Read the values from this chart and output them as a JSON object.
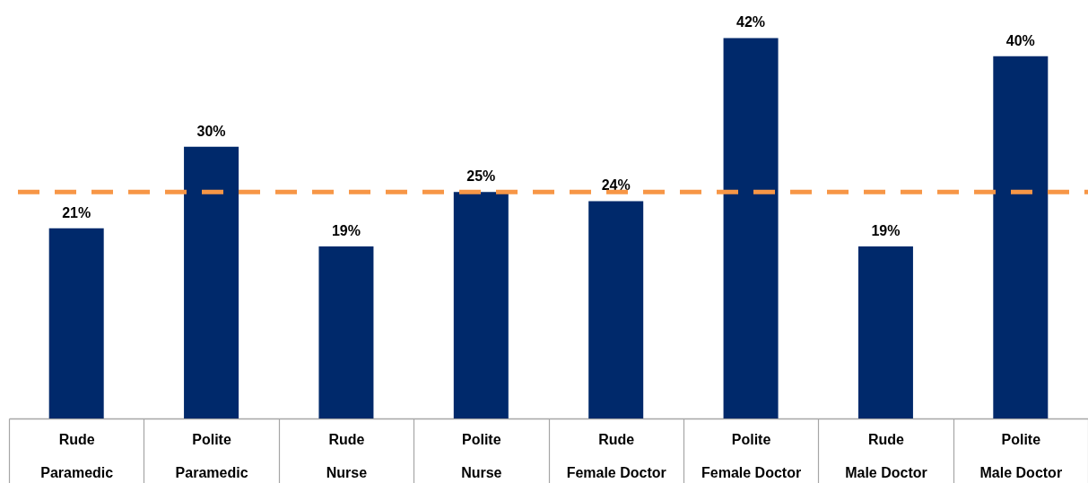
{
  "chart_data": {
    "type": "bar",
    "categories": [
      "Rude\nParamedic",
      "Polite\nParamedic",
      "Rude\nNurse",
      "Polite\nNurse",
      "Rude\nFemale Doctor",
      "Polite\nFemale Doctor",
      "Rude\nMale Doctor",
      "Polite\nMale Doctor"
    ],
    "values": [
      21,
      30,
      19,
      25,
      24,
      42,
      19,
      40
    ],
    "value_labels": [
      "21%",
      "30%",
      "19%",
      "25%",
      "24%",
      "42%",
      "19%",
      "40%"
    ],
    "color": "#00296b",
    "ref_lines": [
      {
        "axis": "y",
        "value": 25,
        "color": "#f79646",
        "line_style": "dashed"
      }
    ],
    "grid": false
  }
}
